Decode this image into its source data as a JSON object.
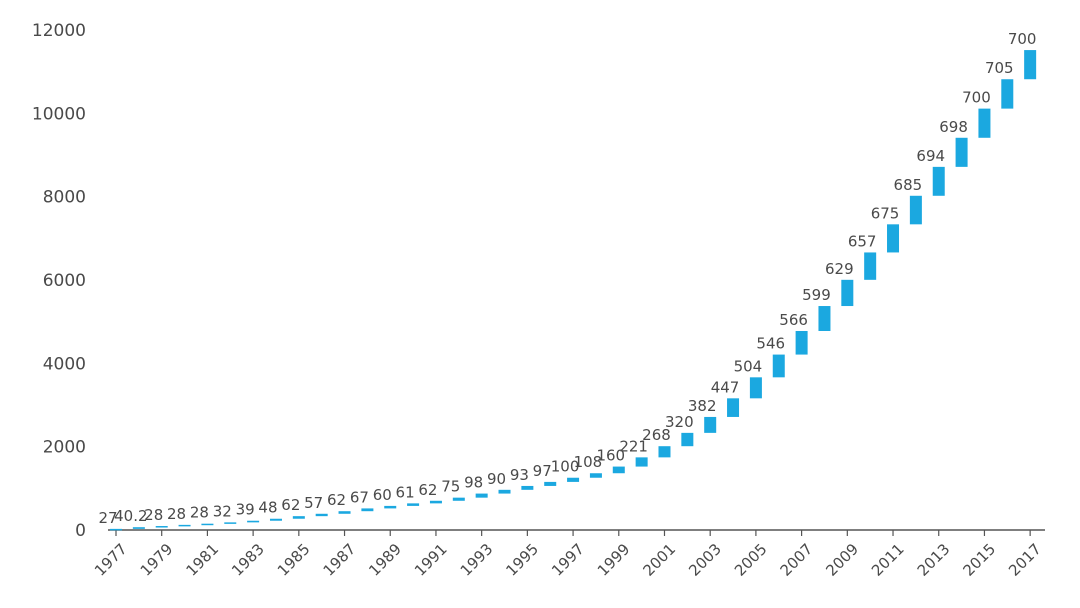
{
  "chart_data": {
    "type": "bar",
    "subtype": "waterfall",
    "title": "",
    "xlabel": "",
    "ylabel": "",
    "ylim": [
      0,
      12000
    ],
    "grid": false,
    "legend": "none",
    "bar_color": "#1ba8e0",
    "yticks": [
      "0",
      "2000",
      "4000",
      "6000",
      "8000",
      "10000",
      "12000"
    ],
    "categories": [
      "1977",
      "1978",
      "1979",
      "1980",
      "1981",
      "1982",
      "1983",
      "1984",
      "1985",
      "1986",
      "1987",
      "1988",
      "1989",
      "1990",
      "1991",
      "1992",
      "1993",
      "1994",
      "1995",
      "1996",
      "1997",
      "1998",
      "1999",
      "2000",
      "2001",
      "2002",
      "2003",
      "2004",
      "2005",
      "2006",
      "2007",
      "2008",
      "2009",
      "2010",
      "2011",
      "2012",
      "2013",
      "2014",
      "2015",
      "2016",
      "2017"
    ],
    "xtick_labels": [
      "1977",
      "1979",
      "1981",
      "1983",
      "1985",
      "1987",
      "1989",
      "1991",
      "1993",
      "1995",
      "1997",
      "1999",
      "2001",
      "2003",
      "2005",
      "2007",
      "2009",
      "2011",
      "2013",
      "2015",
      "2017"
    ],
    "values": [
      27,
      40.2,
      28,
      28,
      28,
      32,
      39,
      48,
      62,
      57,
      62,
      67,
      60,
      61,
      62,
      75,
      98,
      90,
      93,
      97,
      100,
      108,
      160,
      221,
      268,
      320,
      382,
      447,
      504,
      546,
      566,
      599,
      629,
      657,
      675,
      685,
      694,
      698,
      700,
      705,
      700
    ],
    "data_labels": [
      "27",
      "40.2",
      "28",
      "28",
      "28",
      "32",
      "39",
      "48",
      "62",
      "57",
      "62",
      "67",
      "60",
      "61",
      "62",
      "75",
      "98",
      "90",
      "93",
      "97",
      "100",
      "108",
      "160",
      "221",
      "268",
      "320",
      "382",
      "447",
      "504",
      "546",
      "566",
      "599",
      "629",
      "657",
      "675",
      "685",
      "694",
      "698",
      "700",
      "705",
      "700"
    ]
  }
}
